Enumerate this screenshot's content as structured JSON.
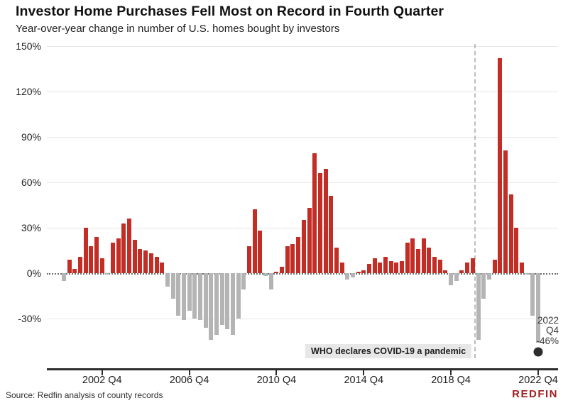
{
  "header": {
    "title": "Investor Home Purchases Fell Most on Record in Fourth Quarter",
    "subtitle": "Year-over-year change in number of U.S. homes bought by investors"
  },
  "chart_data": {
    "type": "bar",
    "title": "Investor Home Purchases Fell Most on Record in Fourth Quarter",
    "subtitle": "Year-over-year change in number of U.S. homes bought by investors",
    "xlabel": "",
    "ylabel": "Year-over-year change (%)",
    "ylim": [
      -50,
      155
    ],
    "grid": true,
    "legend": false,
    "x": [
      "2001 Q1",
      "2001 Q2",
      "2001 Q3",
      "2001 Q4",
      "2002 Q1",
      "2002 Q2",
      "2002 Q3",
      "2002 Q4",
      "2003 Q1",
      "2003 Q2",
      "2003 Q3",
      "2003 Q4",
      "2004 Q1",
      "2004 Q2",
      "2004 Q3",
      "2004 Q4",
      "2005 Q1",
      "2005 Q2",
      "2005 Q3",
      "2005 Q4",
      "2006 Q1",
      "2006 Q2",
      "2006 Q3",
      "2006 Q4",
      "2007 Q1",
      "2007 Q2",
      "2007 Q3",
      "2007 Q4",
      "2008 Q1",
      "2008 Q2",
      "2008 Q3",
      "2008 Q4",
      "2009 Q1",
      "2009 Q2",
      "2009 Q3",
      "2009 Q4",
      "2010 Q1",
      "2010 Q2",
      "2010 Q3",
      "2010 Q4",
      "2011 Q1",
      "2011 Q2",
      "2011 Q3",
      "2011 Q4",
      "2012 Q1",
      "2012 Q2",
      "2012 Q3",
      "2012 Q4",
      "2013 Q1",
      "2013 Q2",
      "2013 Q3",
      "2013 Q4",
      "2014 Q1",
      "2014 Q2",
      "2014 Q3",
      "2014 Q4",
      "2015 Q1",
      "2015 Q2",
      "2015 Q3",
      "2015 Q4",
      "2016 Q1",
      "2016 Q2",
      "2016 Q3",
      "2016 Q4",
      "2017 Q1",
      "2017 Q2",
      "2017 Q3",
      "2017 Q4",
      "2018 Q1",
      "2018 Q2",
      "2018 Q3",
      "2018 Q4",
      "2019 Q1",
      "2019 Q2",
      "2019 Q3",
      "2019 Q4",
      "2020 Q1",
      "2020 Q2",
      "2020 Q3",
      "2020 Q4",
      "2021 Q1",
      "2021 Q2",
      "2021 Q3",
      "2021 Q4",
      "2022 Q1",
      "2022 Q2",
      "2022 Q3",
      "2022 Q4"
    ],
    "values": [
      -5,
      9,
      3,
      11,
      30,
      18,
      24,
      10,
      -1,
      20,
      23,
      33,
      36,
      22,
      16,
      15,
      13,
      11,
      7,
      -9,
      -17,
      -28,
      -31,
      -25,
      -30,
      -31,
      -36,
      -44,
      -41,
      -34,
      -37,
      -41,
      -30,
      -11,
      18,
      42,
      28,
      -2,
      -11,
      1,
      4,
      18,
      19,
      24,
      35,
      43,
      79,
      66,
      69,
      51,
      17,
      7,
      -4,
      -3,
      1,
      2,
      6,
      10,
      7,
      11,
      8,
      7,
      8,
      20,
      23,
      16,
      23,
      17,
      11,
      9,
      2,
      -8,
      -5,
      2,
      7,
      10,
      -44,
      -17,
      -4,
      9,
      142,
      81,
      52,
      30,
      7,
      -1,
      -28,
      -46
    ],
    "ytick_values": [
      150,
      120,
      90,
      60,
      30,
      0,
      -30
    ],
    "ytick_labels": [
      "150%",
      "120%",
      "90%",
      "60%",
      "30%",
      "0%",
      "-30%"
    ],
    "xtick_indices": [
      7,
      23,
      39,
      55,
      71,
      87
    ],
    "xtick_labels": [
      "2002 Q4",
      "2006 Q4",
      "2010 Q4",
      "2014 Q4",
      "2018 Q4",
      "2022 Q4"
    ],
    "colors": {
      "positive": "#c22d25",
      "negative": "#b4b4b4",
      "endpoint_dot": "#2d2d2d",
      "logo_red": "#a02021"
    },
    "covid_line_between_indices": [
      75,
      76
    ],
    "endpoint": {
      "index": 87,
      "quarter": "2022 Q4",
      "value": -46
    }
  },
  "annotations": {
    "covid_label": "WHO declares COVID-19 a pandemic",
    "endpoint_line1": "2022 Q4",
    "endpoint_line2": "-46%"
  },
  "footer": {
    "source": "Source: Redfin analysis of county records",
    "logo": "REDFIN"
  }
}
